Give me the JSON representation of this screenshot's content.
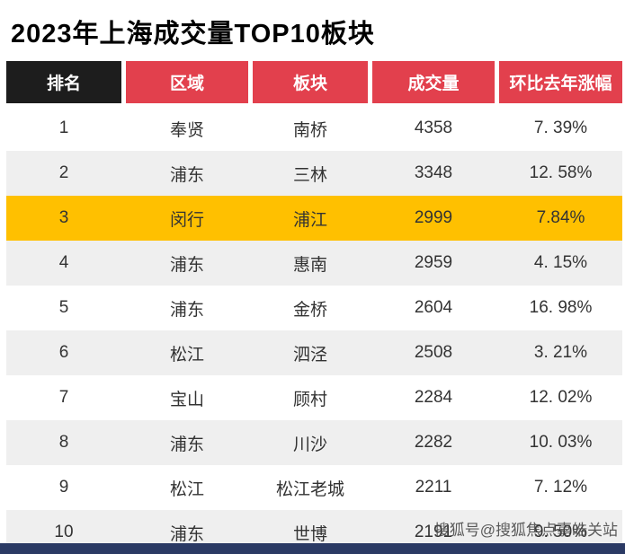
{
  "chart_data": {
    "type": "table",
    "title": "2023年上海成交量TOP10板块",
    "columns": [
      "排名",
      "区域",
      "板块",
      "成交量",
      "环比去年涨幅"
    ],
    "rows": [
      [
        "1",
        "奉贤",
        "南桥",
        "4358",
        "7. 39%"
      ],
      [
        "2",
        "浦东",
        "三林",
        "3348",
        "12. 58%"
      ],
      [
        "3",
        "闵行",
        "浦江",
        "2999",
        "7.84%"
      ],
      [
        "4",
        "浦东",
        "惠南",
        "2959",
        "4. 15%"
      ],
      [
        "5",
        "浦东",
        "金桥",
        "2604",
        "16. 98%"
      ],
      [
        "6",
        "松江",
        "泗泾",
        "2508",
        "3. 21%"
      ],
      [
        "7",
        "宝山",
        "顾村",
        "2284",
        "12. 02%"
      ],
      [
        "8",
        "浦东",
        "川沙",
        "2282",
        "10. 03%"
      ],
      [
        "9",
        "松江",
        "松江老城",
        "2211",
        "7. 12%"
      ],
      [
        "10",
        "浦东",
        "世博",
        "2191",
        "9. 50%"
      ]
    ],
    "highlighted_row_index": 2,
    "highlight_note": "row with rank 3 (闵行 / 浦江) is highlighted in gold"
  },
  "watermark": {
    "text": "搜狐号@搜狐焦点嘉皓关站"
  },
  "colors": {
    "header_red": "#e2404d",
    "header_black": "#1d1d1d",
    "highlight_gold": "#ffc000",
    "row_gray": "#efefef",
    "bottom_bar_blue": "#2b3a64",
    "title_text": "#000000",
    "body_text": "#333333"
  }
}
